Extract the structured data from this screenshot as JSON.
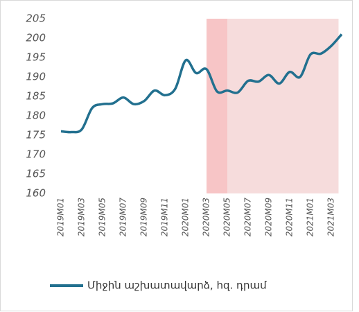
{
  "chart_data": {
    "type": "line",
    "categories": [
      "2019M01",
      null,
      "2019M03",
      null,
      "2019M05",
      null,
      "2019M07",
      null,
      "2019M09",
      null,
      "2019M11",
      null,
      "2020M01",
      null,
      "2020M03",
      null,
      "2020M05",
      null,
      "2020M07",
      null,
      "2020M09",
      null,
      "2020M11",
      null,
      "2021M01",
      null,
      "2021M03",
      null
    ],
    "series": [
      {
        "name": "Միջին աշխատավարձ, հզ. դրամ",
        "color": "#22708f",
        "values": [
          176,
          175.8,
          176.5,
          182,
          183,
          183.2,
          184.7,
          183,
          183.8,
          186.5,
          185.3,
          187,
          194.3,
          191,
          192,
          186.3,
          186.5,
          186,
          189,
          188.8,
          190.5,
          188.3,
          191.3,
          190,
          195.8,
          196,
          198,
          201
        ]
      }
    ],
    "ylim": [
      160,
      205
    ],
    "yticks": [
      160,
      165,
      170,
      175,
      180,
      185,
      190,
      195,
      200,
      205
    ],
    "grid": false,
    "legend": "bottom",
    "highlights": [
      {
        "from": 14,
        "to": 16,
        "color": "#f7c5c6"
      },
      {
        "from": 16,
        "to": 26.7,
        "color": "#f6dcdc"
      }
    ]
  }
}
